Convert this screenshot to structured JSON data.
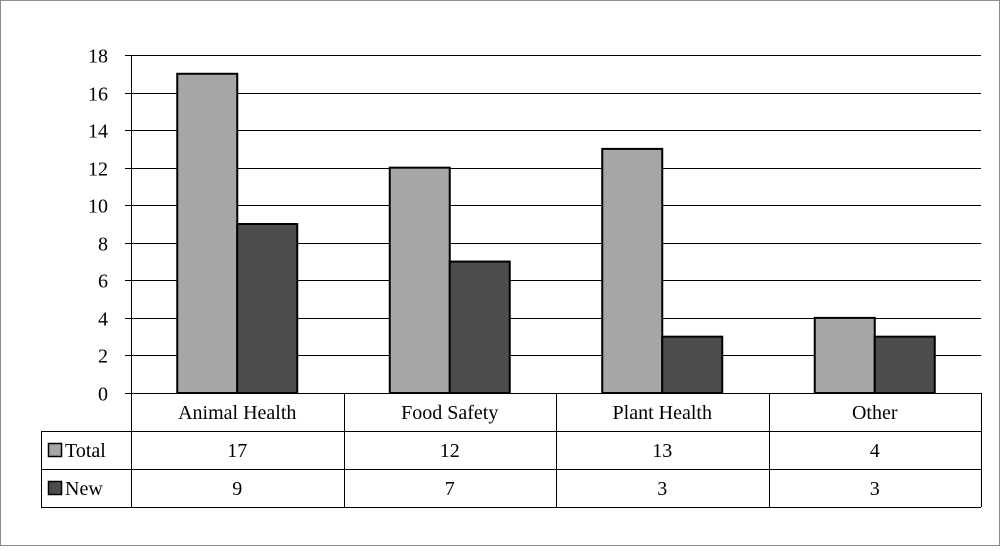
{
  "chart_data": {
    "type": "bar",
    "categories": [
      "Animal Health",
      "Food Safety",
      "Plant Health",
      "Other"
    ],
    "series": [
      {
        "name": "Total",
        "values": [
          17,
          12,
          13,
          4
        ],
        "color": "#a6a6a6"
      },
      {
        "name": "New",
        "values": [
          9,
          7,
          3,
          3
        ],
        "color": "#4d4d4d"
      }
    ],
    "ylim": [
      0,
      18
    ],
    "yticks": [
      0,
      2,
      4,
      6,
      8,
      10,
      12,
      14,
      16,
      18
    ],
    "grid": true,
    "legend": "data-table",
    "title": "",
    "xlabel": "",
    "ylabel": ""
  }
}
